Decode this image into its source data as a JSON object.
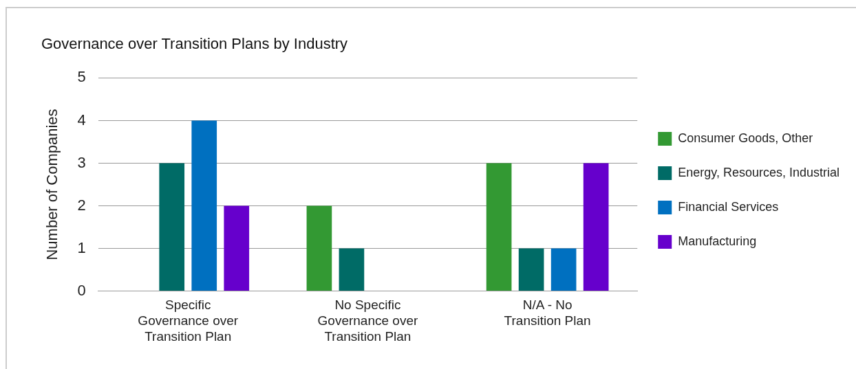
{
  "chart_data": {
    "type": "bar",
    "title": "Governance over Transition Plans by Industry",
    "ylabel": "Number of Companies",
    "categories": [
      "Specific Governance over Transition Plan",
      "No Specific Governance over Transition Plan",
      "N/A - No Transition Plan"
    ],
    "series": [
      {
        "name": "Consumer Goods, Other",
        "color": "#339933",
        "values": [
          0,
          2,
          3
        ]
      },
      {
        "name": "Energy, Resources, Industrial",
        "color": "#006b66",
        "values": [
          3,
          1,
          1
        ]
      },
      {
        "name": "Financial Services",
        "color": "#0070c0",
        "values": [
          4,
          0,
          1
        ]
      },
      {
        "name": "Manufacturing",
        "color": "#6600cc",
        "values": [
          2,
          0,
          3
        ]
      }
    ],
    "ylim": [
      0,
      5
    ],
    "yticks": [
      0,
      1,
      2,
      3,
      4,
      5
    ],
    "grid": "y",
    "legend": "right"
  }
}
